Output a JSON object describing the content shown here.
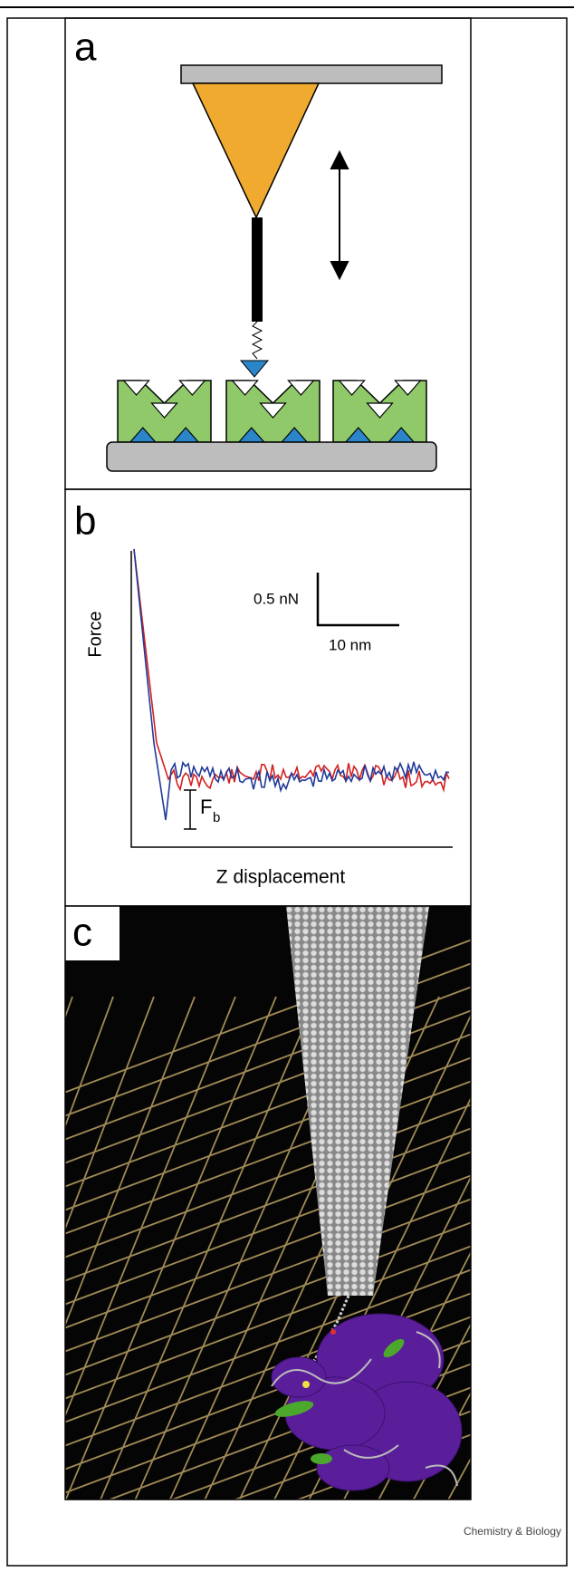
{
  "panels": {
    "a": {
      "label": "a"
    },
    "b": {
      "label": "b",
      "scale_y": "0.5 nN",
      "scale_x": "10 nm",
      "y_axis": "Force",
      "fb": "F",
      "fb_sub": "b",
      "x_axis": "Z displacement"
    },
    "c": {
      "label": "c"
    }
  },
  "footer": "Chemistry & Biology"
}
